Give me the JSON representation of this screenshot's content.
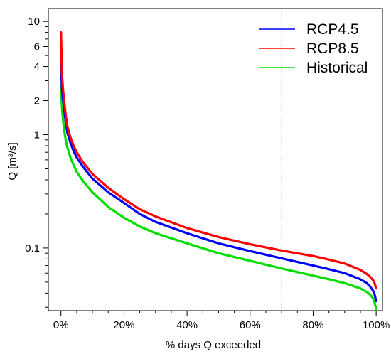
{
  "chart_data": {
    "type": "line",
    "xlabel": "% days Q exceeded",
    "ylabel": "Q [m³/s]",
    "x_scale": "linear",
    "y_scale": "log",
    "xlim": [
      -4,
      102
    ],
    "ylim": [
      0.028,
      13
    ],
    "x_ticks": [
      0,
      20,
      40,
      60,
      80,
      100
    ],
    "x_tick_labels": [
      "0%",
      "20%",
      "40%",
      "60%",
      "80%",
      "100%"
    ],
    "y_ticks": [
      0.1,
      1,
      2,
      4,
      6,
      10
    ],
    "y_tick_labels": [
      "0.1",
      "1",
      "2",
      "4",
      "6",
      "10"
    ],
    "vertical_reference_lines_x": [
      20,
      70
    ],
    "grid": false,
    "legend_position": "top-right",
    "series": [
      {
        "name": "RCP4.5",
        "color": "#0000ff",
        "x": [
          0,
          0.3,
          0.6,
          1,
          1.5,
          2,
          3,
          4,
          5,
          7,
          10,
          15,
          20,
          25,
          30,
          40,
          50,
          60,
          70,
          80,
          85,
          90,
          95,
          97,
          98,
          99,
          99.5,
          100
        ],
        "y": [
          4.5,
          2.6,
          2.1,
          1.7,
          1.3,
          1.05,
          0.85,
          0.72,
          0.63,
          0.52,
          0.41,
          0.31,
          0.25,
          0.2,
          0.17,
          0.135,
          0.11,
          0.094,
          0.081,
          0.07,
          0.065,
          0.06,
          0.053,
          0.049,
          0.046,
          0.042,
          0.039,
          0.034
        ]
      },
      {
        "name": "RCP8.5",
        "color": "#ff0000",
        "x": [
          0,
          0.15,
          0.3,
          0.6,
          1,
          1.5,
          2,
          3,
          4,
          5,
          7,
          10,
          15,
          20,
          25,
          30,
          40,
          50,
          60,
          70,
          80,
          85,
          90,
          95,
          97,
          98,
          99,
          99.5,
          100
        ],
        "y": [
          8,
          5.5,
          3.5,
          2.6,
          2,
          1.5,
          1.2,
          0.95,
          0.8,
          0.7,
          0.57,
          0.45,
          0.34,
          0.27,
          0.22,
          0.19,
          0.15,
          0.125,
          0.108,
          0.095,
          0.085,
          0.079,
          0.073,
          0.064,
          0.059,
          0.056,
          0.052,
          0.049,
          0.044
        ]
      },
      {
        "name": "Historical",
        "color": "#00dd00",
        "x": [
          0,
          0.3,
          0.6,
          1,
          1.5,
          2,
          3,
          4,
          5,
          7,
          10,
          15,
          20,
          25,
          30,
          40,
          50,
          60,
          70,
          80,
          85,
          90,
          95,
          97,
          98,
          99,
          99.5,
          100
        ],
        "y": [
          2.7,
          1.8,
          1.4,
          1.1,
          0.9,
          0.78,
          0.63,
          0.54,
          0.47,
          0.39,
          0.31,
          0.23,
          0.185,
          0.155,
          0.135,
          0.11,
          0.09,
          0.077,
          0.066,
          0.057,
          0.053,
          0.049,
          0.044,
          0.041,
          0.039,
          0.036,
          0.033,
          0.029
        ]
      }
    ]
  }
}
